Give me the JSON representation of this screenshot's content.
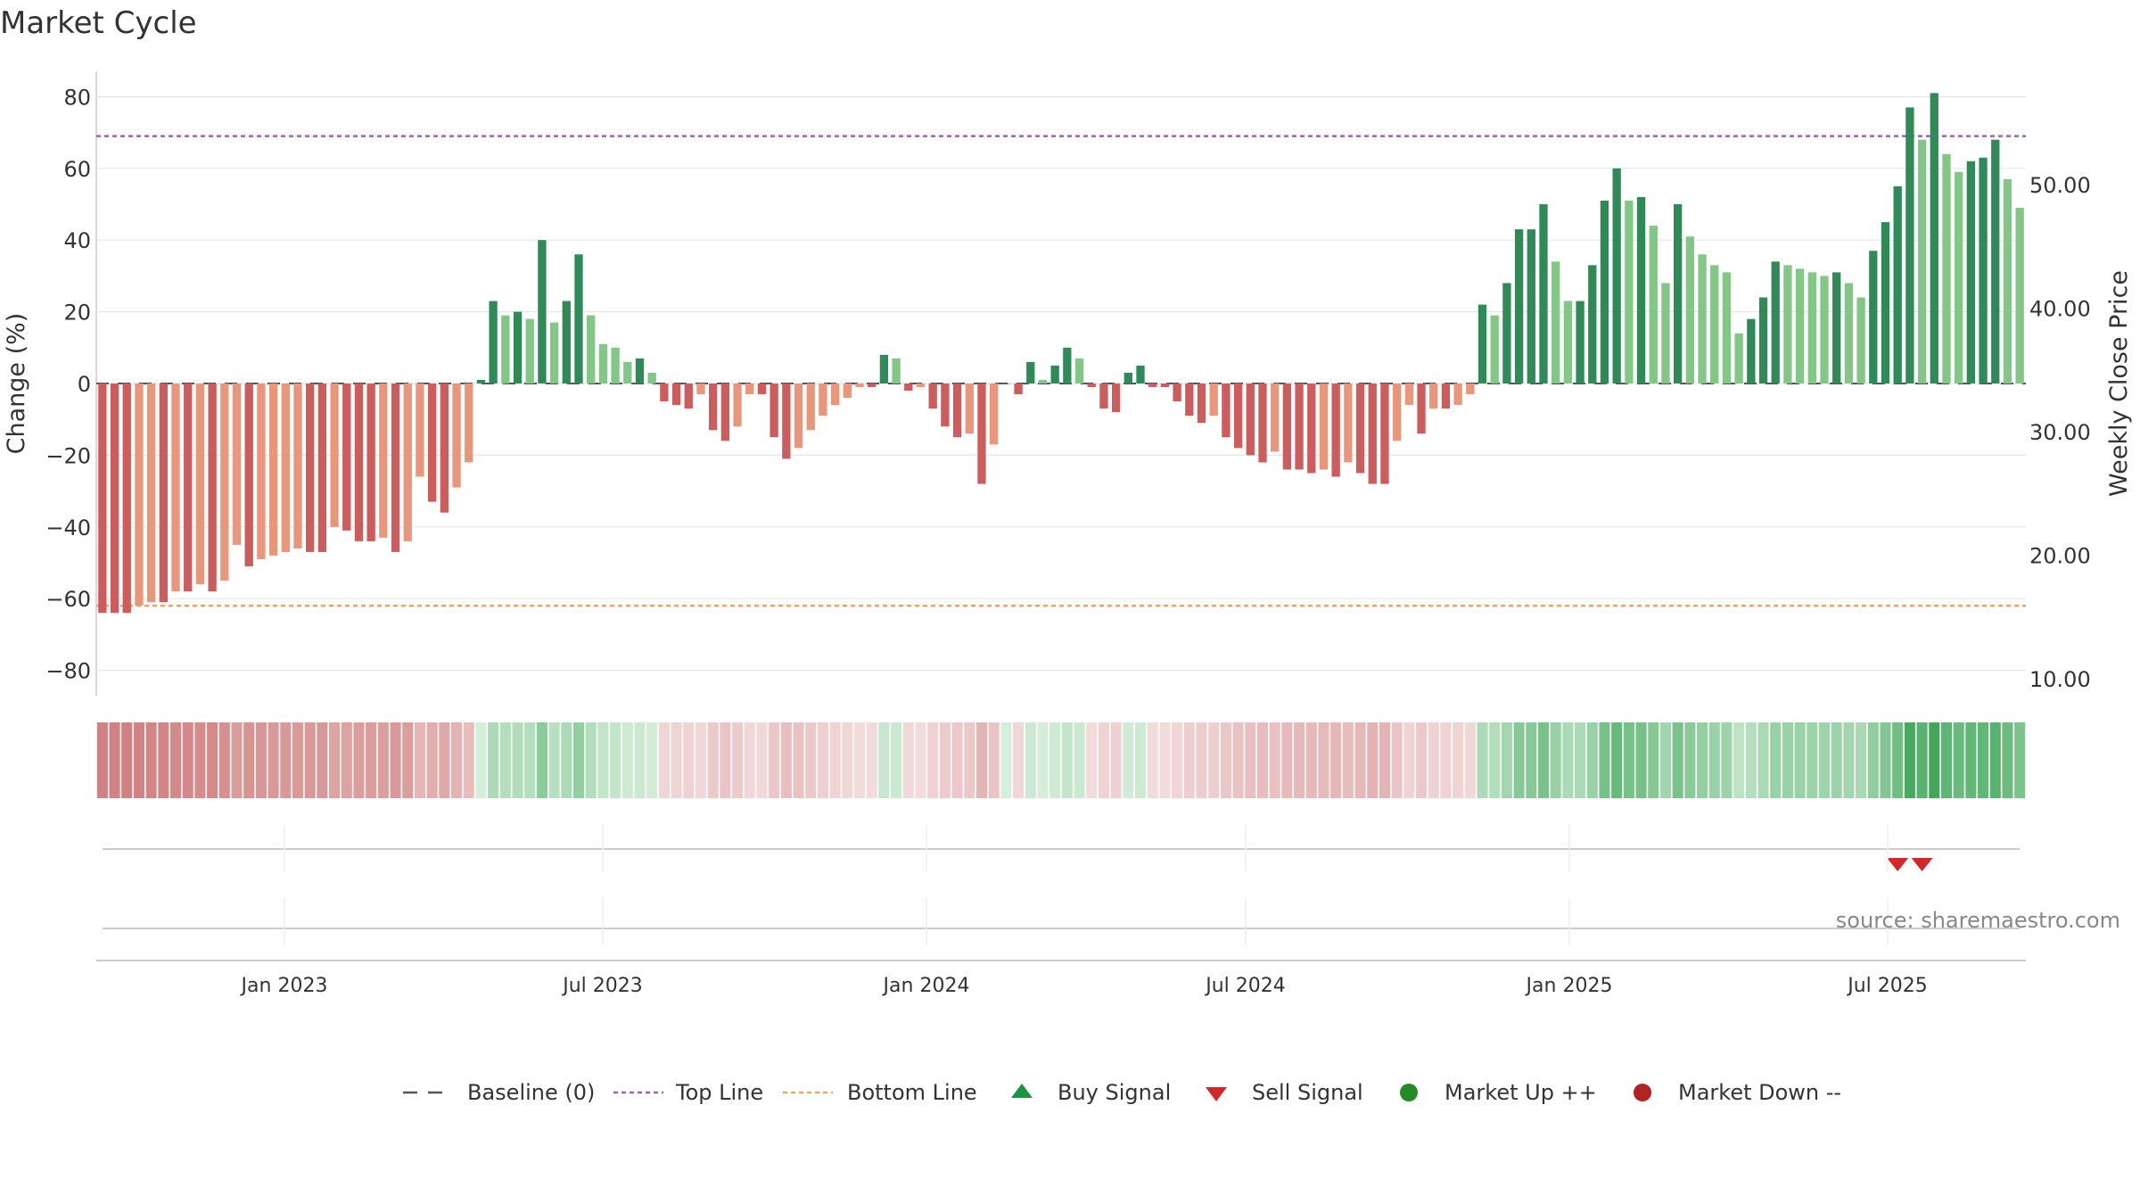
{
  "chart_data": {
    "type": "bar",
    "title": "Market Cycle",
    "ylabel": "Change (%)",
    "y2label": "Weekly Close Price",
    "ylim": [
      -87,
      87
    ],
    "y2lim": [
      7,
      61.5
    ],
    "yticks": [
      "80",
      "60",
      "40",
      "20",
      "0",
      "−20",
      "−40",
      "−60",
      "−80"
    ],
    "y2ticks": [
      "50.00",
      "40.00",
      "30.00",
      "20.00",
      "10.00"
    ],
    "xticks": [
      "Jan 2023",
      "Jul 2023",
      "Jan 2024",
      "Jul 2024",
      "Jan 2025",
      "Jul 2025"
    ],
    "top_line": 69,
    "bottom_line": -62,
    "baseline": 0,
    "weeks": 158,
    "values": [
      -64,
      -64,
      -64,
      -62,
      -61,
      -61,
      -58,
      -58,
      -56,
      -58,
      -55,
      -45,
      -51,
      -49,
      -48,
      -47,
      -46,
      -47,
      -47,
      -40,
      -41,
      -44,
      -44,
      -43,
      -47,
      -44,
      -26,
      -33,
      -36,
      -29,
      -22,
      1,
      23,
      19,
      20,
      18,
      40,
      17,
      23,
      36,
      19,
      11,
      10,
      6,
      7,
      3,
      -5,
      -6,
      -7,
      -3,
      -13,
      -16,
      -12,
      -3,
      -3,
      -15,
      -21,
      -18,
      -13,
      -9,
      -6,
      -4,
      -1,
      -1,
      8,
      7,
      -2,
      -1,
      -7,
      -12,
      -15,
      -14,
      -28,
      -17,
      0,
      -3,
      6,
      1,
      5,
      10,
      7,
      -1,
      -7,
      -8,
      3,
      5,
      -1,
      -1,
      -5,
      -9,
      -11,
      -9,
      -15,
      -18,
      -20,
      -22,
      -19,
      -24,
      -24,
      -25,
      -24,
      -26,
      -22,
      -25,
      -28,
      -28,
      -16,
      -6,
      -14,
      -7,
      -7,
      -6,
      -3,
      22,
      19,
      28,
      43,
      43,
      50,
      34,
      23,
      23,
      33,
      51,
      60,
      51,
      52,
      44,
      28,
      50,
      41,
      36,
      33,
      31,
      14,
      18,
      24,
      34,
      33,
      32,
      31,
      30,
      31,
      28,
      24,
      37,
      45,
      55,
      77,
      68,
      81,
      64,
      59,
      62,
      63,
      68,
      57,
      49
    ],
    "sell_signals_week_index": [
      147,
      149
    ],
    "annotation": "source: sharemaestro.com",
    "legend": {
      "position": "bottom-center",
      "entries": [
        "Baseline (0)",
        "Top Line",
        "Bottom Line",
        "Buy Signal",
        "Sell Signal",
        "Market Up ++",
        "Market Down --"
      ]
    },
    "colors": {
      "up_strong": "#2e8b57",
      "up_light": "#82c785",
      "down_strong": "#cd5c5c",
      "down_light": "#e9967a",
      "top_line": "#9467bd",
      "bottom_line": "#f4a261",
      "baseline": "#555555",
      "buy_signal": "#1a9641",
      "sell_signal": "#d62728",
      "market_up": "#228b22",
      "market_down": "#b22222"
    }
  }
}
